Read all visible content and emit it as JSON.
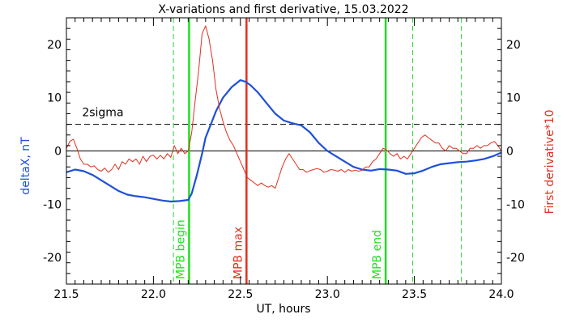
{
  "chart_data": {
    "type": "line",
    "title": "X-variations and first derivative, 15.03.2022",
    "xlabel": "UT, hours",
    "ylabel_left": "deltaX, nT",
    "ylabel_right": "First derivative*10",
    "xlim": [
      21.5,
      24.0
    ],
    "ylim": [
      -25,
      25
    ],
    "x_ticks": [
      21.5,
      22.0,
      22.5,
      23.0,
      23.5,
      24.0
    ],
    "x_tick_labels": [
      "21.5",
      "22.0",
      "22.5",
      "23.0",
      "23.5",
      "24.0"
    ],
    "y_ticks": [
      -20,
      -10,
      0,
      10,
      20
    ],
    "y_tick_labels": [
      "-20",
      "-10",
      "0",
      "10",
      "20"
    ],
    "colors": {
      "deltaX": "#1f4fd8",
      "derivative": "#e0301e",
      "green": "#22dd22",
      "red": "#e0301e",
      "black": "#000000"
    },
    "two_sigma": {
      "label": "2sigma",
      "value": 5
    },
    "zero_line": 0,
    "series": [
      {
        "key": "deltaX",
        "x": [
          21.5,
          21.55,
          21.6,
          21.65,
          21.7,
          21.75,
          21.8,
          21.85,
          21.9,
          21.95,
          22.0,
          22.05,
          22.1,
          22.15,
          22.2,
          22.22,
          22.25,
          22.28,
          22.3,
          22.33,
          22.36,
          22.4,
          22.45,
          22.5,
          22.53,
          22.56,
          22.6,
          22.65,
          22.7,
          22.75,
          22.8,
          22.85,
          22.9,
          22.95,
          23.0,
          23.05,
          23.1,
          23.15,
          23.2,
          23.25,
          23.3,
          23.35,
          23.4,
          23.45,
          23.5,
          23.55,
          23.6,
          23.65,
          23.7,
          23.75,
          23.8,
          23.85,
          23.9,
          23.95,
          24.0
        ],
        "y": [
          -4,
          -3.5,
          -3.8,
          -4.5,
          -5.5,
          -6.5,
          -7.5,
          -8.2,
          -8.5,
          -8.7,
          -9,
          -9.3,
          -9.5,
          -9.4,
          -9.2,
          -8.0,
          -4.5,
          -0.5,
          2.5,
          5.0,
          7.5,
          10.0,
          12.0,
          13.3,
          13.0,
          12.3,
          11.0,
          9.0,
          7.0,
          5.7,
          5.2,
          4.8,
          3.5,
          1.5,
          0.0,
          -1.0,
          -2.0,
          -3.0,
          -3.5,
          -3.7,
          -3.4,
          -3.5,
          -3.7,
          -4.3,
          -4.2,
          -3.7,
          -3.0,
          -2.5,
          -2.3,
          -2.1,
          -2.0,
          -1.8,
          -1.5,
          -1.0,
          -0.3
        ]
      },
      {
        "key": "derivative",
        "x": [
          21.5,
          21.52,
          21.54,
          21.56,
          21.58,
          21.6,
          21.62,
          21.64,
          21.66,
          21.68,
          21.7,
          21.72,
          21.74,
          21.76,
          21.78,
          21.8,
          21.82,
          21.84,
          21.86,
          21.88,
          21.9,
          21.92,
          21.94,
          21.96,
          21.98,
          22.0,
          22.02,
          22.04,
          22.06,
          22.08,
          22.1,
          22.12,
          22.14,
          22.16,
          22.18,
          22.2,
          22.22,
          22.24,
          22.26,
          22.28,
          22.3,
          22.32,
          22.34,
          22.36,
          22.38,
          22.4,
          22.42,
          22.44,
          22.46,
          22.48,
          22.5,
          22.52,
          22.54,
          22.56,
          22.58,
          22.6,
          22.62,
          22.64,
          22.66,
          22.68,
          22.7,
          22.72,
          22.74,
          22.76,
          22.78,
          22.8,
          22.82,
          22.84,
          22.86,
          22.88,
          22.9,
          22.92,
          22.94,
          22.96,
          22.98,
          23.0,
          23.02,
          23.04,
          23.06,
          23.08,
          23.1,
          23.12,
          23.14,
          23.16,
          23.18,
          23.2,
          23.22,
          23.24,
          23.26,
          23.28,
          23.3,
          23.32,
          23.34,
          23.36,
          23.38,
          23.4,
          23.42,
          23.44,
          23.46,
          23.48,
          23.5,
          23.52,
          23.54,
          23.56,
          23.58,
          23.6,
          23.62,
          23.64,
          23.66,
          23.68,
          23.7,
          23.72,
          23.74,
          23.76,
          23.78,
          23.8,
          23.82,
          23.84,
          23.86,
          23.88,
          23.9,
          23.92,
          23.94,
          23.96,
          23.98,
          24.0
        ],
        "y": [
          0.5,
          1.8,
          2.2,
          0.5,
          -1.5,
          -2.5,
          -2.5,
          -3.0,
          -2.8,
          -3.5,
          -3.8,
          -3.2,
          -4.0,
          -3.5,
          -2.5,
          -3.5,
          -2.0,
          -2.5,
          -1.5,
          -2.0,
          -1.5,
          -2.5,
          -1.0,
          -2.0,
          -1.0,
          -0.8,
          -1.5,
          -0.8,
          -1.5,
          -0.5,
          -1.2,
          1.0,
          -0.5,
          0.5,
          -0.5,
          0.0,
          3.5,
          9.5,
          15.0,
          22.0,
          23.5,
          21.0,
          17.0,
          11.5,
          8.0,
          5.5,
          3.5,
          2.0,
          1.0,
          -0.5,
          -2.0,
          -3.5,
          -5.0,
          -5.5,
          -6.0,
          -6.5,
          -6.0,
          -6.5,
          -6.8,
          -6.5,
          -7.0,
          -5.0,
          -3.0,
          -1.5,
          -0.5,
          -1.5,
          -2.5,
          -3.5,
          -3.5,
          -4.0,
          -3.7,
          -3.5,
          -3.3,
          -3.5,
          -4.0,
          -3.8,
          -3.5,
          -3.6,
          -3.8,
          -3.5,
          -4.0,
          -3.5,
          -3.8,
          -3.6,
          -3.8,
          -3.6,
          -3.0,
          -3.0,
          -2.0,
          -1.5,
          -0.5,
          0.5,
          0.2,
          -0.5,
          -1.0,
          -0.5,
          -1.5,
          -1.0,
          -1.5,
          -0.5,
          0.5,
          1.5,
          2.5,
          3.0,
          2.5,
          2.0,
          1.5,
          1.5,
          0.5,
          0.0,
          1.0,
          0.5,
          0.5,
          0.0,
          -0.5,
          -0.5,
          0.5,
          0.5,
          1.0,
          0.5,
          1.0,
          1.0,
          1.5,
          1.8,
          1.0,
          0.0
        ]
      }
    ],
    "vertical_lines": [
      {
        "x": 22.115,
        "color": "#22dd22",
        "dashed": true,
        "label": ""
      },
      {
        "x": 22.205,
        "color": "#22dd22",
        "dashed": false,
        "label": "MPB begin"
      },
      {
        "x": 22.535,
        "color": "#e0301e",
        "dashed": false,
        "label": "MPB max"
      },
      {
        "x": 23.335,
        "color": "#22dd22",
        "dashed": false,
        "label": "MPB end"
      },
      {
        "x": 23.49,
        "color": "#22dd22",
        "dashed": true,
        "label": ""
      },
      {
        "x": 23.77,
        "color": "#22dd22",
        "dashed": true,
        "label": ""
      }
    ],
    "grid": false,
    "legend": "none"
  }
}
